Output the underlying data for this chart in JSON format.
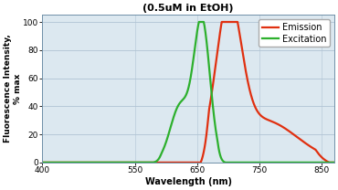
{
  "title": "(0.5uM in EtOH)",
  "xlabel": "Wavelength (nm)",
  "ylabel": "Fluorescence Intensity,\n% max",
  "xlim": [
    400,
    870
  ],
  "ylim": [
    0,
    105
  ],
  "xticks": [
    400,
    550,
    650,
    750,
    850
  ],
  "yticks": [
    0,
    20,
    40,
    60,
    80,
    100
  ],
  "emission_color": "#e03010",
  "excitation_color": "#2db02d",
  "legend_emission": "Emission",
  "legend_excitation": "Excitation",
  "bg_color": "#dce8f0",
  "grid_color": "#b0c4d4",
  "title_fontsize": 8,
  "label_fontsize": 7,
  "tick_fontsize": 6.5,
  "legend_fontsize": 7
}
